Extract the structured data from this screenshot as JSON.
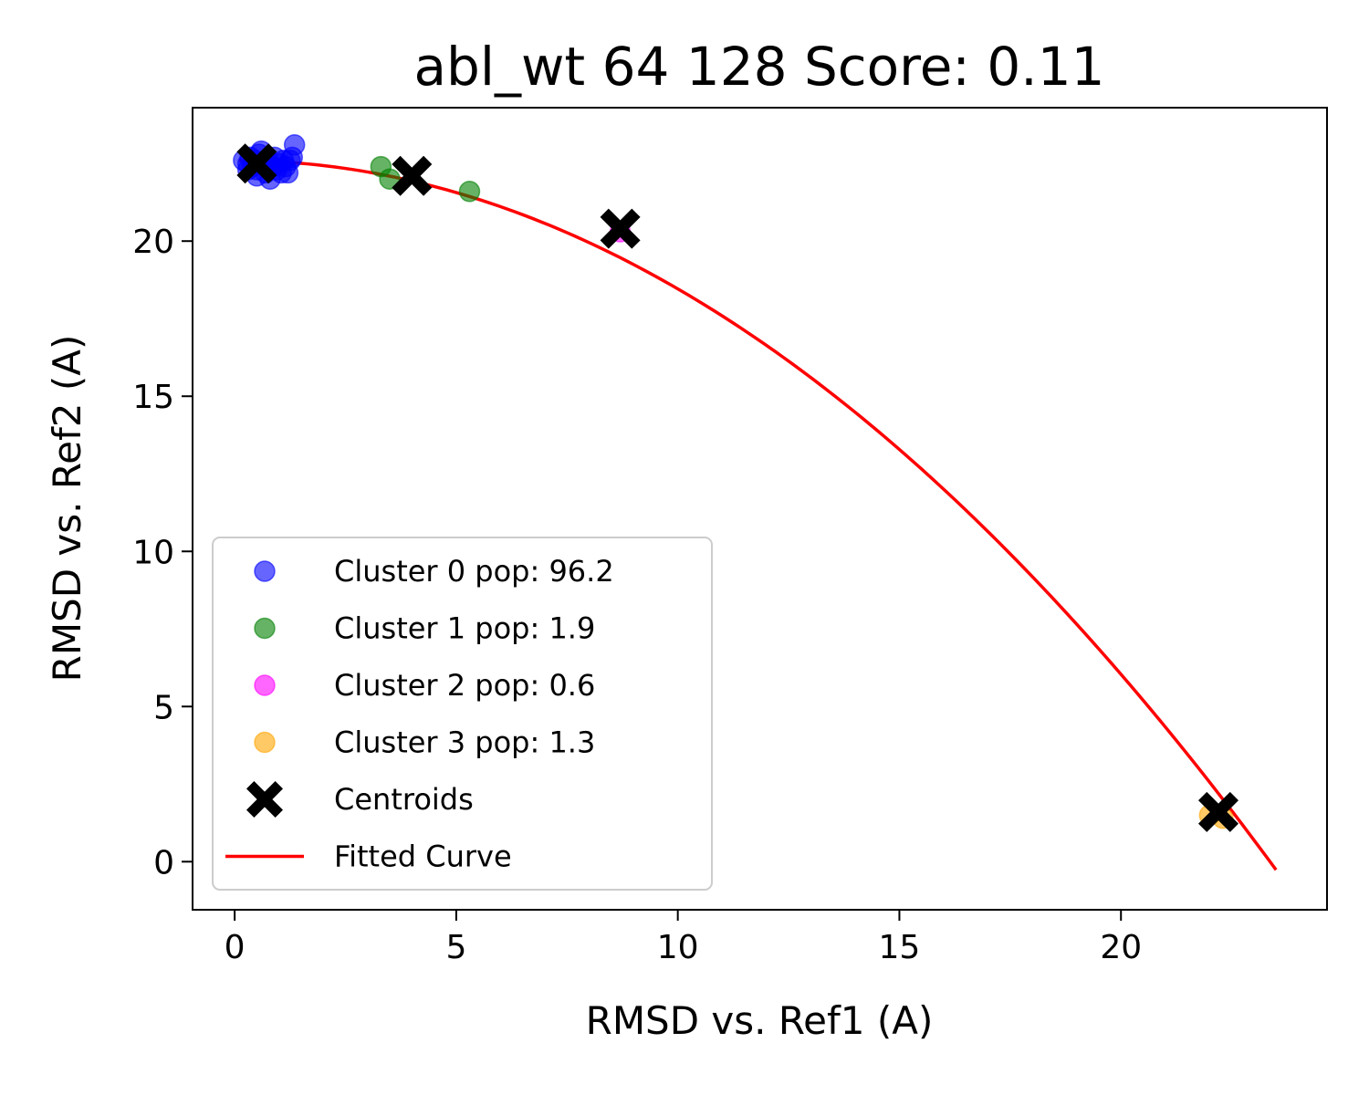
{
  "chart_data": {
    "type": "scatter",
    "title": "abl_wt 64 128 Score: 0.11",
    "xlabel": "RMSD vs. Ref1 (A)",
    "ylabel": "RMSD vs. Ref2 (A)",
    "xlim": [
      -0.95,
      24.65
    ],
    "ylim": [
      -1.55,
      24.3
    ],
    "xticks": [
      0,
      5,
      10,
      15,
      20
    ],
    "yticks": [
      0,
      5,
      10,
      15,
      20
    ],
    "grid": false,
    "legend_position": "lower-left",
    "series": [
      {
        "name": "Cluster 0 pop: 96.2",
        "color": "#0000ff",
        "points": [
          [
            0.2,
            22.6
          ],
          [
            0.3,
            22.5
          ],
          [
            0.35,
            22.7
          ],
          [
            0.4,
            22.4
          ],
          [
            0.45,
            22.6
          ],
          [
            0.5,
            22.3
          ],
          [
            0.55,
            22.8
          ],
          [
            0.6,
            22.9
          ],
          [
            0.65,
            22.5
          ],
          [
            0.7,
            22.2
          ],
          [
            0.75,
            22.6
          ],
          [
            0.8,
            22.0
          ],
          [
            0.85,
            22.4
          ],
          [
            0.9,
            22.7
          ],
          [
            0.95,
            22.3
          ],
          [
            1.0,
            22.5
          ],
          [
            1.05,
            22.2
          ],
          [
            1.1,
            22.6
          ],
          [
            1.15,
            22.4
          ],
          [
            1.2,
            22.2
          ],
          [
            1.25,
            22.6
          ],
          [
            1.3,
            22.7
          ],
          [
            1.35,
            23.1
          ],
          [
            0.3,
            22.3
          ],
          [
            0.5,
            22.1
          ]
        ]
      },
      {
        "name": "Cluster 1 pop: 1.9",
        "color": "#008000",
        "points": [
          [
            3.3,
            22.4
          ],
          [
            3.5,
            22.0
          ],
          [
            5.3,
            21.6
          ]
        ]
      },
      {
        "name": "Cluster 2 pop: 0.6",
        "color": "#ff00ff",
        "points": [
          [
            8.7,
            20.3
          ]
        ]
      },
      {
        "name": "Cluster 3 pop: 1.3",
        "color": "#ffa500",
        "points": [
          [
            22.0,
            1.5
          ],
          [
            22.3,
            1.4
          ]
        ]
      }
    ],
    "centroids": {
      "name": "Centroids",
      "color": "#000000",
      "points": [
        [
          0.5,
          22.5
        ],
        [
          4.0,
          22.1
        ],
        [
          8.7,
          20.4
        ],
        [
          22.2,
          1.6
        ]
      ]
    },
    "fitted_curve": {
      "name": "Fitted Curve",
      "color": "#ff0000",
      "x_range": [
        0.1,
        23.5
      ],
      "coefficients": {
        "a": -0.0414,
        "b": 0.0,
        "c": 22.6
      }
    }
  }
}
